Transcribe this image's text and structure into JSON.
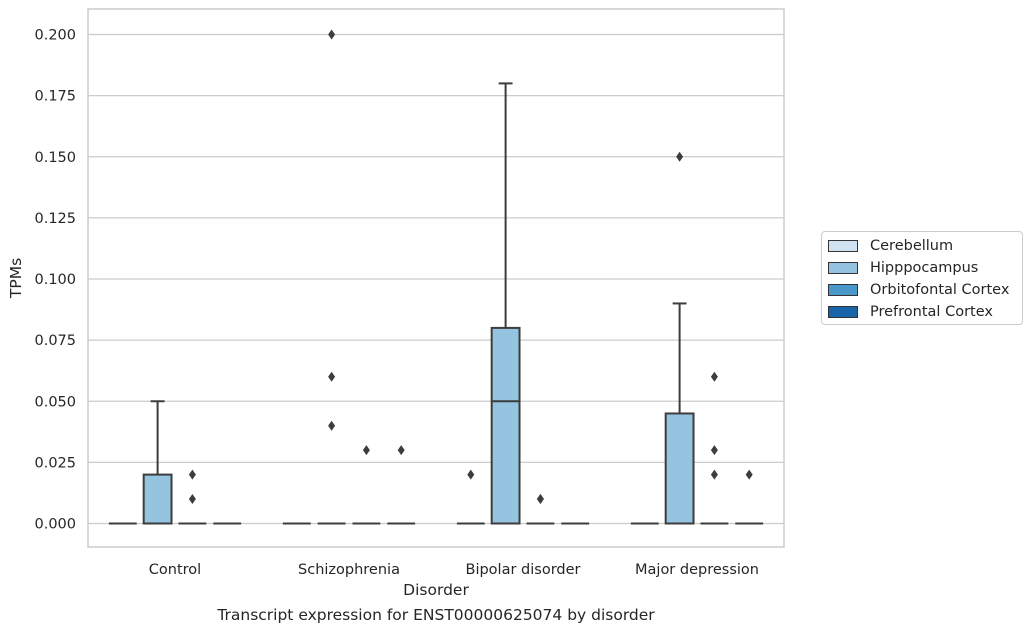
{
  "chart_data": {
    "type": "box",
    "xlabel": "Disorder",
    "ylabel": "TPMs",
    "ylim": [
      -0.01,
      0.21
    ],
    "yticks": [
      "0.000",
      "0.025",
      "0.050",
      "0.075",
      "0.100",
      "0.125",
      "0.150",
      "0.175",
      "0.200"
    ],
    "ytick_values": [
      0,
      0.025,
      0.05,
      0.075,
      0.1,
      0.125,
      0.15,
      0.175,
      0.2
    ],
    "categories": [
      "Control",
      "Schizophrenia",
      "Bipolar disorder",
      "Major depression"
    ],
    "grid": "horizontal",
    "legend_position": "right",
    "series": [
      {
        "name": "Cerebellum",
        "color": "#d0e1f2",
        "boxes": [
          {
            "q1": 0,
            "median": 0,
            "q3": 0,
            "whisker_low": 0,
            "whisker_high": 0,
            "outliers": []
          },
          {
            "q1": 0,
            "median": 0,
            "q3": 0,
            "whisker_low": 0,
            "whisker_high": 0,
            "outliers": []
          },
          {
            "q1": 0,
            "median": 0,
            "q3": 0,
            "whisker_low": 0,
            "whisker_high": 0,
            "outliers": [
              0.02
            ]
          },
          {
            "q1": 0,
            "median": 0,
            "q3": 0,
            "whisker_low": 0,
            "whisker_high": 0,
            "outliers": []
          }
        ]
      },
      {
        "name": "Hipppocampus",
        "color": "#94c4df",
        "boxes": [
          {
            "q1": 0,
            "median": 0,
            "q3": 0.02,
            "whisker_low": 0,
            "whisker_high": 0.05,
            "outliers": []
          },
          {
            "q1": 0,
            "median": 0,
            "q3": 0,
            "whisker_low": 0,
            "whisker_high": 0,
            "outliers": [
              0.2,
              0.06,
              0.04
            ]
          },
          {
            "q1": 0,
            "median": 0.05,
            "q3": 0.08,
            "whisker_low": 0,
            "whisker_high": 0.18,
            "outliers": []
          },
          {
            "q1": 0,
            "median": 0,
            "q3": 0.045,
            "whisker_low": 0,
            "whisker_high": 0.09,
            "outliers": [
              0.15
            ]
          }
        ]
      },
      {
        "name": "Orbitofontal Cortex",
        "color": "#4a98c9",
        "boxes": [
          {
            "q1": 0,
            "median": 0,
            "q3": 0,
            "whisker_low": 0,
            "whisker_high": 0,
            "outliers": [
              0.02,
              0.01
            ]
          },
          {
            "q1": 0,
            "median": 0,
            "q3": 0,
            "whisker_low": 0,
            "whisker_high": 0,
            "outliers": [
              0.03
            ]
          },
          {
            "q1": 0,
            "median": 0,
            "q3": 0,
            "whisker_low": 0,
            "whisker_high": 0,
            "outliers": [
              0.01,
              0.01
            ]
          },
          {
            "q1": 0,
            "median": 0,
            "q3": 0,
            "whisker_low": 0,
            "whisker_high": 0,
            "outliers": [
              0.06,
              0.03,
              0.02
            ]
          }
        ]
      },
      {
        "name": "Prefrontal Cortex",
        "color": "#1764ab",
        "boxes": [
          {
            "q1": 0,
            "median": 0,
            "q3": 0,
            "whisker_low": 0,
            "whisker_high": 0,
            "outliers": []
          },
          {
            "q1": 0,
            "median": 0,
            "q3": 0,
            "whisker_low": 0,
            "whisker_high": 0,
            "outliers": [
              0.03
            ]
          },
          {
            "q1": 0,
            "median": 0,
            "q3": 0,
            "whisker_low": 0,
            "whisker_high": 0,
            "outliers": []
          },
          {
            "q1": 0,
            "median": 0,
            "q3": 0,
            "whisker_low": 0,
            "whisker_high": 0,
            "outliers": [
              0.02
            ]
          }
        ]
      }
    ]
  },
  "legend": {
    "items": [
      {
        "label": "Cerebellum",
        "color": "#d0e1f2"
      },
      {
        "label": "Hipppocampus",
        "color": "#94c4df"
      },
      {
        "label": "Orbitofontal Cortex",
        "color": "#4a98c9"
      },
      {
        "label": "Prefrontal Cortex",
        "color": "#1764ab"
      }
    ]
  },
  "caption": "Transcript expression for ENST00000625074 by disorder"
}
